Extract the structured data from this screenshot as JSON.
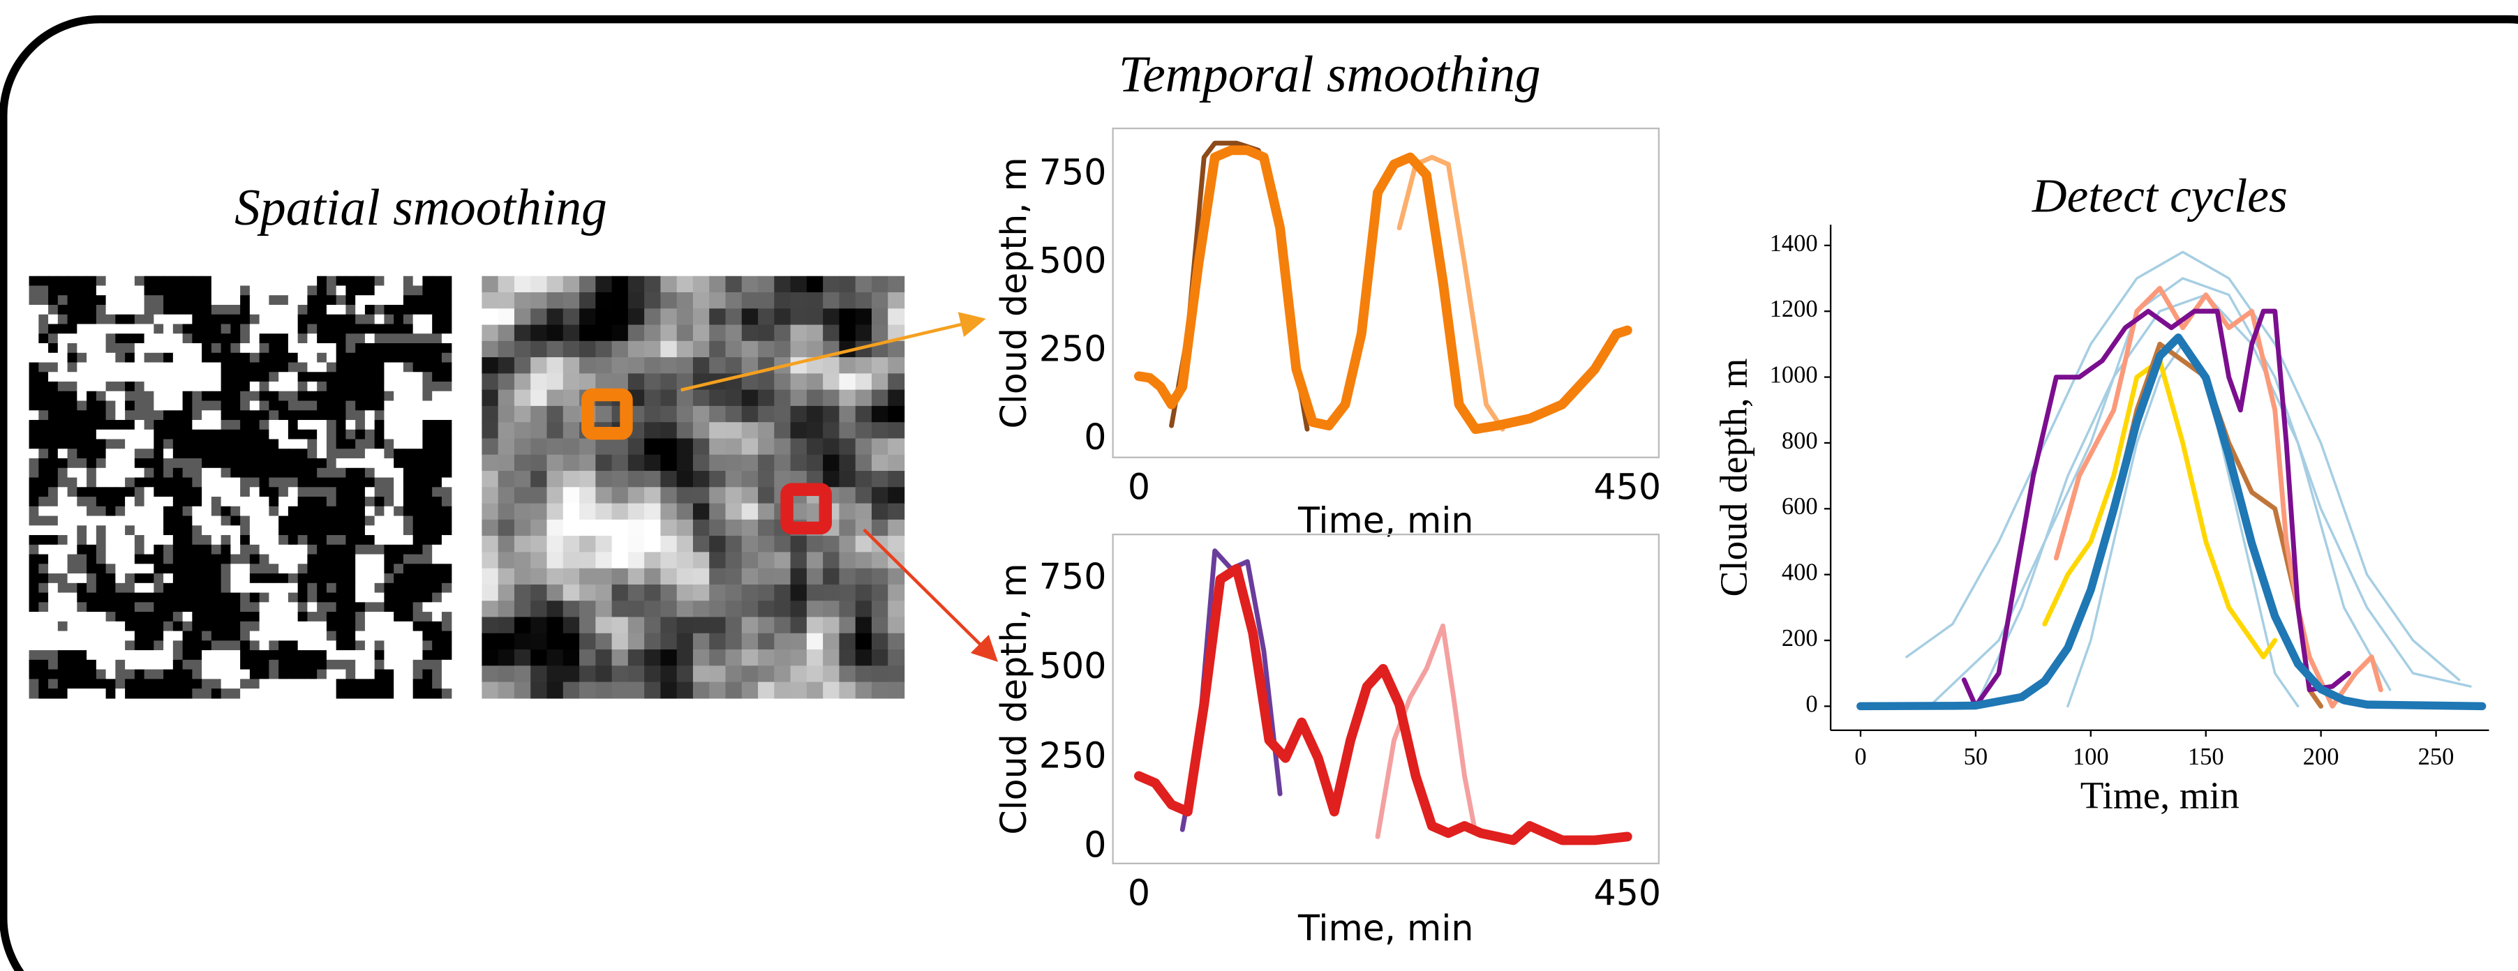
{
  "headings": {
    "spatial": "Spatial smoothing",
    "temporal": "Temporal smoothing"
  },
  "chart_data": [
    {
      "type": "line",
      "xlabel": "Time, min",
      "ylabel": "Cloud depth, m",
      "xlim": [
        -24,
        479
      ],
      "ylim": [
        -50,
        882
      ],
      "xticks": [
        0,
        450
      ],
      "yticks": [
        0,
        250,
        500,
        750
      ],
      "series": [
        {
          "color": "#8c4a1a",
          "x": [
            30,
            45,
            60,
            70,
            90,
            110,
            125,
            140,
            155
          ],
          "values": [
            40,
            300,
            800,
            840,
            840,
            820,
            700,
            300,
            30
          ]
        },
        {
          "color": "#fdae6b",
          "x": [
            240,
            255,
            270,
            285,
            300,
            320,
            335
          ],
          "values": [
            600,
            780,
            800,
            780,
            500,
            100,
            30
          ]
        },
        {
          "color": "#f57f0b",
          "x": [
            0,
            10,
            20,
            30,
            40,
            55,
            70,
            85,
            100,
            115,
            130,
            145,
            160,
            175,
            190,
            205,
            220,
            235,
            250,
            265,
            280,
            295,
            310,
            330,
            360,
            390,
            420,
            440,
            450
          ],
          "values": [
            180,
            175,
            150,
            100,
            150,
            500,
            800,
            820,
            820,
            800,
            600,
            200,
            50,
            40,
            100,
            300,
            700,
            780,
            800,
            750,
            450,
            100,
            30,
            40,
            60,
            100,
            200,
            300,
            310
          ]
        }
      ]
    },
    {
      "type": "line",
      "xlabel": "Time, min",
      "ylabel": "Cloud depth, m",
      "xlim": [
        -24,
        479
      ],
      "ylim": [
        -45,
        876
      ],
      "xticks": [
        0,
        450
      ],
      "yticks": [
        0,
        250,
        500,
        750
      ],
      "series": [
        {
          "color": "#6a3d9a",
          "x": [
            40,
            55,
            70,
            85,
            100,
            115,
            130
          ],
          "values": [
            50,
            300,
            830,
            780,
            800,
            550,
            150
          ]
        },
        {
          "color": "#f4a0a0",
          "x": [
            220,
            235,
            250,
            265,
            280,
            290,
            300,
            310
          ],
          "values": [
            30,
            300,
            420,
            500,
            620,
            420,
            200,
            40
          ]
        },
        {
          "color": "#e0201e",
          "x": [
            0,
            15,
            30,
            45,
            60,
            75,
            90,
            105,
            120,
            135,
            150,
            165,
            180,
            195,
            210,
            225,
            240,
            255,
            270,
            285,
            300,
            315,
            330,
            345,
            360,
            375,
            390,
            420,
            450
          ],
          "values": [
            200,
            180,
            120,
            100,
            400,
            750,
            780,
            600,
            300,
            250,
            350,
            250,
            100,
            300,
            450,
            500,
            400,
            200,
            60,
            40,
            60,
            40,
            30,
            20,
            60,
            40,
            20,
            20,
            30
          ]
        }
      ]
    },
    {
      "type": "line",
      "title": "Detect cycles",
      "xlabel": "Time, min",
      "ylabel": "Cloud depth, m",
      "xlim": [
        -13,
        273
      ],
      "ylim": [
        -73,
        1463
      ],
      "xticks": [
        0,
        50,
        100,
        150,
        200,
        250
      ],
      "yticks": [
        0,
        200,
        400,
        600,
        800,
        1000,
        1200,
        1400
      ],
      "series": [
        {
          "color": "#a6cee3",
          "x": [
            20,
            40,
            60,
            80,
            100,
            120,
            140,
            160,
            180,
            200,
            220,
            240,
            260
          ],
          "values": [
            150,
            250,
            500,
            800,
            1100,
            1300,
            1380,
            1300,
            1100,
            800,
            400,
            200,
            80
          ]
        },
        {
          "color": "#a6cee3",
          "x": [
            50,
            70,
            90,
            110,
            130,
            150,
            170,
            190,
            210,
            230
          ],
          "values": [
            0,
            300,
            700,
            1000,
            1200,
            1250,
            1100,
            800,
            300,
            50
          ]
        },
        {
          "color": "#a6cee3",
          "x": [
            90,
            100,
            110,
            120,
            130,
            140,
            150,
            160,
            170,
            180,
            190
          ],
          "values": [
            0,
            200,
            500,
            800,
            1000,
            1100,
            1000,
            700,
            400,
            100,
            0
          ]
        },
        {
          "color": "#a6cee3",
          "x": [
            30,
            60,
            80,
            100,
            120,
            140,
            160,
            180,
            200,
            220,
            240,
            265
          ],
          "values": [
            0,
            200,
            500,
            800,
            1200,
            1300,
            1250,
            1000,
            600,
            300,
            100,
            60
          ]
        },
        {
          "color": "#ffd700",
          "x": [
            80,
            90,
            100,
            110,
            120,
            130,
            140,
            150,
            160,
            170,
            175,
            180
          ],
          "values": [
            250,
            400,
            500,
            700,
            1000,
            1050,
            800,
            500,
            300,
            200,
            150,
            200
          ]
        },
        {
          "color": "#c0763a",
          "x": [
            110,
            120,
            130,
            140,
            150,
            160,
            170,
            180,
            190,
            195,
            200
          ],
          "values": [
            600,
            900,
            1100,
            1050,
            1000,
            800,
            650,
            600,
            300,
            50,
            0
          ]
        },
        {
          "color": "#fb9a7a",
          "x": [
            85,
            95,
            110,
            120,
            130,
            140,
            150,
            160,
            170,
            175,
            180,
            185,
            190,
            195,
            205,
            215,
            222,
            226
          ],
          "values": [
            450,
            700,
            900,
            1200,
            1270,
            1150,
            1250,
            1150,
            1200,
            1050,
            900,
            500,
            300,
            150,
            0,
            100,
            150,
            50
          ]
        },
        {
          "color": "#7b0e8e",
          "x": [
            45,
            50,
            60,
            75,
            85,
            95,
            105,
            115,
            125,
            135,
            145,
            155,
            160,
            165,
            170,
            175,
            180,
            185,
            190,
            195,
            205,
            212
          ],
          "values": [
            80,
            0,
            100,
            700,
            1000,
            1000,
            1050,
            1150,
            1200,
            1150,
            1200,
            1200,
            1000,
            900,
            1100,
            1200,
            1200,
            800,
            300,
            50,
            60,
            100
          ]
        },
        {
          "color": "#1f77b4",
          "x": [
            0,
            40,
            50,
            70,
            80,
            90,
            100,
            110,
            120,
            130,
            138,
            150,
            160,
            170,
            180,
            190,
            200,
            210,
            220,
            270
          ],
          "values": [
            0,
            1,
            2,
            28,
            76,
            177,
            353,
            598,
            864,
            1064,
            1120,
            998,
            761,
            494,
            273,
            129,
            52,
            18,
            5,
            0
          ]
        }
      ]
    }
  ]
}
